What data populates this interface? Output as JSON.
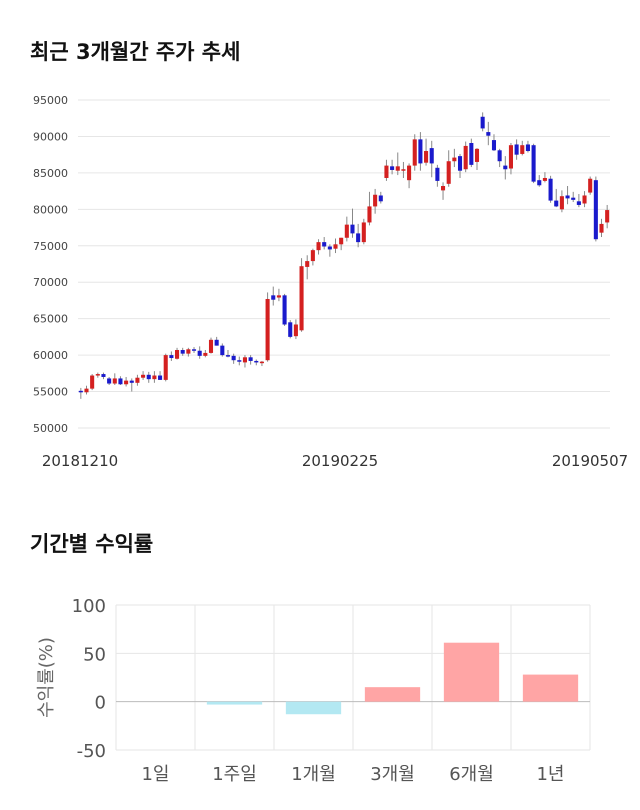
{
  "sections": {
    "price_title": "최근 3개월간 주가 추세",
    "return_title": "기간별 수익률"
  },
  "colors": {
    "up": "#d42020",
    "down": "#1a1acc",
    "wick": "#888888",
    "grid": "#e6e6e6",
    "positive_bar": "#ffa5a5",
    "negative_bar": "#b3e8f2",
    "zero_line": "#bbbbbb"
  },
  "chart_data": [
    {
      "type": "candlestick",
      "title": "최근 3개월간 주가 추세",
      "ylim": [
        50000,
        95000
      ],
      "yticks": [
        95000,
        90000,
        85000,
        80000,
        75000,
        70000,
        65000,
        60000,
        55000,
        50000
      ],
      "x_tick_labels": [
        "20181210",
        "20190225",
        "20190507"
      ],
      "grid": true,
      "candles": [
        [
          55100,
          55500,
          54000,
          54900
        ],
        [
          54900,
          55800,
          54600,
          55400
        ],
        [
          55400,
          57400,
          55200,
          57200
        ],
        [
          57200,
          57600,
          56900,
          57400
        ],
        [
          57400,
          57600,
          56700,
          57000
        ],
        [
          56800,
          57000,
          55900,
          56100
        ],
        [
          56100,
          57500,
          55900,
          56800
        ],
        [
          56800,
          57100,
          55900,
          56000
        ],
        [
          56000,
          57000,
          55700,
          56500
        ],
        [
          56500,
          56800,
          55000,
          56200
        ],
        [
          56200,
          57300,
          55800,
          56900
        ],
        [
          56900,
          57800,
          56600,
          57300
        ],
        [
          57300,
          57700,
          56200,
          56700
        ],
        [
          56700,
          57800,
          56200,
          57200
        ],
        [
          57200,
          57800,
          56600,
          56600
        ],
        [
          56600,
          60200,
          56400,
          60000
        ],
        [
          60000,
          60500,
          59200,
          59600
        ],
        [
          59500,
          61000,
          59400,
          60700
        ],
        [
          60700,
          61000,
          59900,
          60200
        ],
        [
          60200,
          61000,
          59800,
          60800
        ],
        [
          60800,
          61100,
          60300,
          60600
        ],
        [
          60600,
          61200,
          59500,
          59900
        ],
        [
          59900,
          60700,
          59700,
          60300
        ],
        [
          60300,
          62400,
          60200,
          62100
        ],
        [
          62100,
          62500,
          61300,
          61300
        ],
        [
          61300,
          61600,
          59800,
          60000
        ],
        [
          60000,
          60700,
          59700,
          59900
        ],
        [
          59900,
          60200,
          58800,
          59300
        ],
        [
          59300,
          59800,
          58600,
          59100
        ],
        [
          59000,
          60000,
          58300,
          59700
        ],
        [
          59700,
          60000,
          58700,
          59200
        ],
        [
          59200,
          59400,
          58600,
          59100
        ],
        [
          58900,
          59200,
          58500,
          59100
        ],
        [
          59300,
          68600,
          59100,
          67700
        ],
        [
          68200,
          69400,
          66800,
          67600
        ],
        [
          67900,
          69100,
          67400,
          68200
        ],
        [
          68200,
          68400,
          64000,
          64200
        ],
        [
          64500,
          64800,
          62300,
          62500
        ],
        [
          62600,
          64900,
          62200,
          64200
        ],
        [
          63400,
          73300,
          63200,
          72200
        ],
        [
          72100,
          73700,
          70400,
          72900
        ],
        [
          72900,
          74600,
          72300,
          74400
        ],
        [
          74400,
          75900,
          73800,
          75500
        ],
        [
          75500,
          76200,
          74500,
          74900
        ],
        [
          74900,
          75200,
          73500,
          74500
        ],
        [
          74600,
          76000,
          74000,
          75200
        ],
        [
          75200,
          76100,
          74400,
          76100
        ],
        [
          76100,
          79000,
          75600,
          77900
        ],
        [
          77900,
          80100,
          76100,
          76700
        ],
        [
          76700,
          78000,
          74800,
          75500
        ],
        [
          75500,
          78700,
          75200,
          78200
        ],
        [
          78200,
          82400,
          77800,
          80400
        ],
        [
          80400,
          82800,
          79400,
          82000
        ],
        [
          81900,
          82400,
          80800,
          81100
        ],
        [
          84300,
          86800,
          83900,
          86000
        ],
        [
          85900,
          86800,
          84800,
          85400
        ],
        [
          85300,
          87800,
          84700,
          85900
        ],
        [
          85400,
          86500,
          84300,
          85500
        ],
        [
          84000,
          86300,
          82900,
          86000
        ],
        [
          86000,
          90300,
          85300,
          89600
        ],
        [
          89600,
          90600,
          85300,
          86300
        ],
        [
          86400,
          89700,
          86000,
          88000
        ],
        [
          88400,
          89400,
          84400,
          86300
        ],
        [
          85700,
          86100,
          83100,
          83900
        ],
        [
          82600,
          83700,
          81300,
          83200
        ],
        [
          83500,
          88100,
          83100,
          86600
        ],
        [
          86600,
          88300,
          85800,
          87100
        ],
        [
          87300,
          87600,
          84300,
          85300
        ],
        [
          85500,
          89300,
          85100,
          88700
        ],
        [
          89100,
          89700,
          85800,
          86100
        ],
        [
          86500,
          88400,
          85400,
          88300
        ],
        [
          92700,
          93300,
          90700,
          91100
        ],
        [
          90600,
          92000,
          88800,
          90100
        ],
        [
          89500,
          90300,
          88000,
          88100
        ],
        [
          88100,
          88300,
          85800,
          86600
        ],
        [
          86000,
          87300,
          84100,
          85500
        ],
        [
          85600,
          89100,
          84800,
          88800
        ],
        [
          88900,
          89600,
          86800,
          87500
        ],
        [
          87600,
          89400,
          87400,
          88800
        ],
        [
          88900,
          89400,
          87800,
          88000
        ],
        [
          88800,
          89000,
          83600,
          83800
        ],
        [
          84000,
          84700,
          83100,
          83300
        ],
        [
          83900,
          85100,
          83700,
          84300
        ],
        [
          84200,
          84600,
          80900,
          81200
        ],
        [
          81200,
          82800,
          80300,
          80400
        ],
        [
          80000,
          82600,
          79600,
          81800
        ],
        [
          81900,
          83200,
          80700,
          81500
        ],
        [
          81600,
          82400,
          81000,
          81300
        ],
        [
          81100,
          82100,
          80300,
          80600
        ],
        [
          80800,
          82500,
          80300,
          81900
        ],
        [
          82300,
          84500,
          82000,
          84200
        ],
        [
          84000,
          84500,
          75600,
          75900
        ],
        [
          76800,
          78700,
          76200,
          78000
        ],
        [
          78200,
          80600,
          77400,
          79900
        ]
      ]
    },
    {
      "type": "bar",
      "title": "기간별 수익률",
      "categories": [
        "1일",
        "1주일",
        "1개월",
        "3개월",
        "6개월",
        "1년"
      ],
      "values": [
        0,
        -3,
        -13,
        15,
        61,
        28
      ],
      "ylabel": "수익률(%)",
      "ylim": [
        -50,
        100
      ],
      "yticks": [
        100,
        50,
        0,
        -50
      ],
      "grid": true
    }
  ]
}
